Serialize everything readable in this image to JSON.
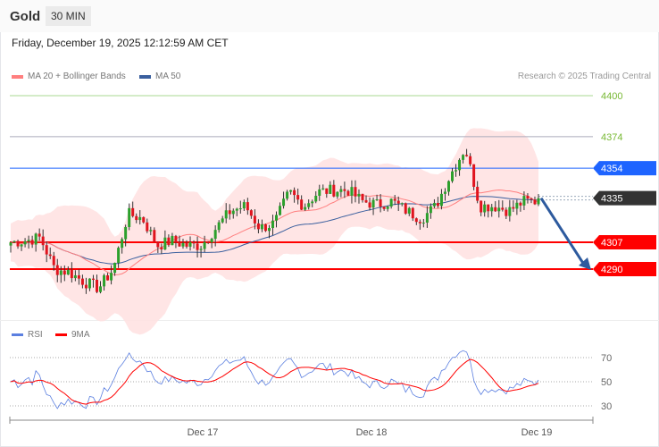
{
  "header": {
    "title": "Gold",
    "timeframe": "30 MIN",
    "datetime": "Friday, December 19, 2025 12:12:59 AM CET"
  },
  "legend": {
    "ma20": "MA 20 + Bollinger Bands",
    "ma50": "MA 50",
    "credit": "Research © 2025 Trading Central"
  },
  "rsi_legend": {
    "rsi": "RSI",
    "ma9": "9MA"
  },
  "colors": {
    "ma20": "#ff7f7f",
    "ma50": "#3a5f9e",
    "up": "#2ca02c",
    "down": "#e0141e",
    "resistance": "#1e64ff",
    "support": "#ff0000",
    "current": "#333333",
    "target": "#77b833",
    "rsi": "#5b7fe0",
    "rsi_ma": "#ff0000",
    "arrow": "#2d5a9e"
  },
  "levels": [
    {
      "value": 4400,
      "label": "4400",
      "type": "target"
    },
    {
      "value": 4374,
      "label": "4374",
      "type": "target"
    },
    {
      "value": 4354,
      "label": "4354",
      "type": "resistance"
    },
    {
      "value": 4335,
      "label": "4335",
      "type": "current"
    },
    {
      "value": 4307,
      "label": "4307",
      "type": "support"
    },
    {
      "value": 4290,
      "label": "4290",
      "type": "support"
    }
  ],
  "rsi_levels": [
    {
      "value": 70,
      "label": "70"
    },
    {
      "value": 50,
      "label": "50"
    },
    {
      "value": 30,
      "label": "30"
    }
  ],
  "x_labels": [
    "Dec 17",
    "Dec 18",
    "Dec 19"
  ],
  "chart_data": {
    "type": "candlestick",
    "ylim": [
      4265,
      4410
    ],
    "closes": [
      4307,
      4308,
      4310,
      4290,
      4288,
      4282,
      4278,
      4290,
      4325,
      4322,
      4305,
      4308,
      4305,
      4305,
      4316,
      4327,
      4330,
      4316,
      4319,
      4339,
      4330,
      4339,
      4340,
      4340,
      4333,
      4331,
      4333,
      4327,
      4322,
      4330,
      4350,
      4367,
      4330,
      4330,
      4327,
      4333,
      4333
    ],
    "forecast": {
      "from": 4335,
      "to": 4290,
      "direction": "down"
    }
  }
}
